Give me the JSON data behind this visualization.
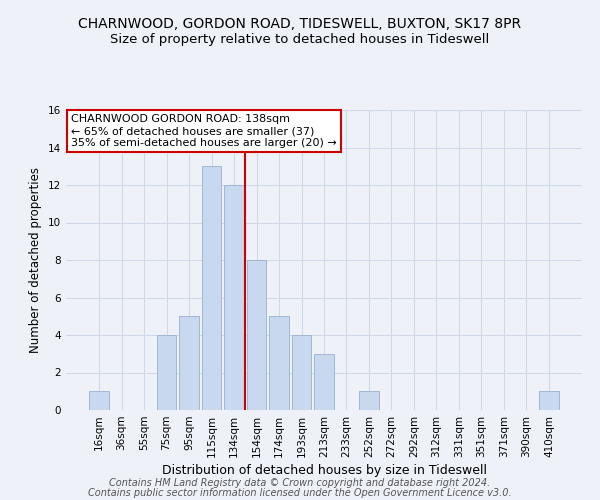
{
  "title": "CHARNWOOD, GORDON ROAD, TIDESWELL, BUXTON, SK17 8PR",
  "subtitle": "Size of property relative to detached houses in Tideswell",
  "xlabel": "Distribution of detached houses by size in Tideswell",
  "ylabel": "Number of detached properties",
  "bar_labels": [
    "16sqm",
    "36sqm",
    "55sqm",
    "75sqm",
    "95sqm",
    "115sqm",
    "134sqm",
    "154sqm",
    "174sqm",
    "193sqm",
    "213sqm",
    "233sqm",
    "252sqm",
    "272sqm",
    "292sqm",
    "312sqm",
    "331sqm",
    "351sqm",
    "371sqm",
    "390sqm",
    "410sqm"
  ],
  "bar_values": [
    1,
    0,
    0,
    4,
    5,
    13,
    12,
    8,
    5,
    4,
    3,
    0,
    1,
    0,
    0,
    0,
    0,
    0,
    0,
    0,
    1
  ],
  "bar_color": "#c8d8ee",
  "bar_edge_color": "#a0b8d4",
  "vline_color": "#cc0000",
  "annotation_text": "CHARNWOOD GORDON ROAD: 138sqm\n← 65% of detached houses are smaller (37)\n35% of semi-detached houses are larger (20) →",
  "annotation_box_color": "white",
  "annotation_box_edge_color": "#cc0000",
  "ylim": [
    0,
    16
  ],
  "yticks": [
    0,
    2,
    4,
    6,
    8,
    10,
    12,
    14,
    16
  ],
  "grid_color": "#d0d8e8",
  "background_color": "#eef2f8",
  "footer_line1": "Contains HM Land Registry data © Crown copyright and database right 2024.",
  "footer_line2": "Contains public sector information licensed under the Open Government Licence v3.0.",
  "title_fontsize": 10,
  "subtitle_fontsize": 9.5,
  "xlabel_fontsize": 9,
  "ylabel_fontsize": 8.5,
  "tick_fontsize": 7.5,
  "annotation_fontsize": 8,
  "footer_fontsize": 7
}
